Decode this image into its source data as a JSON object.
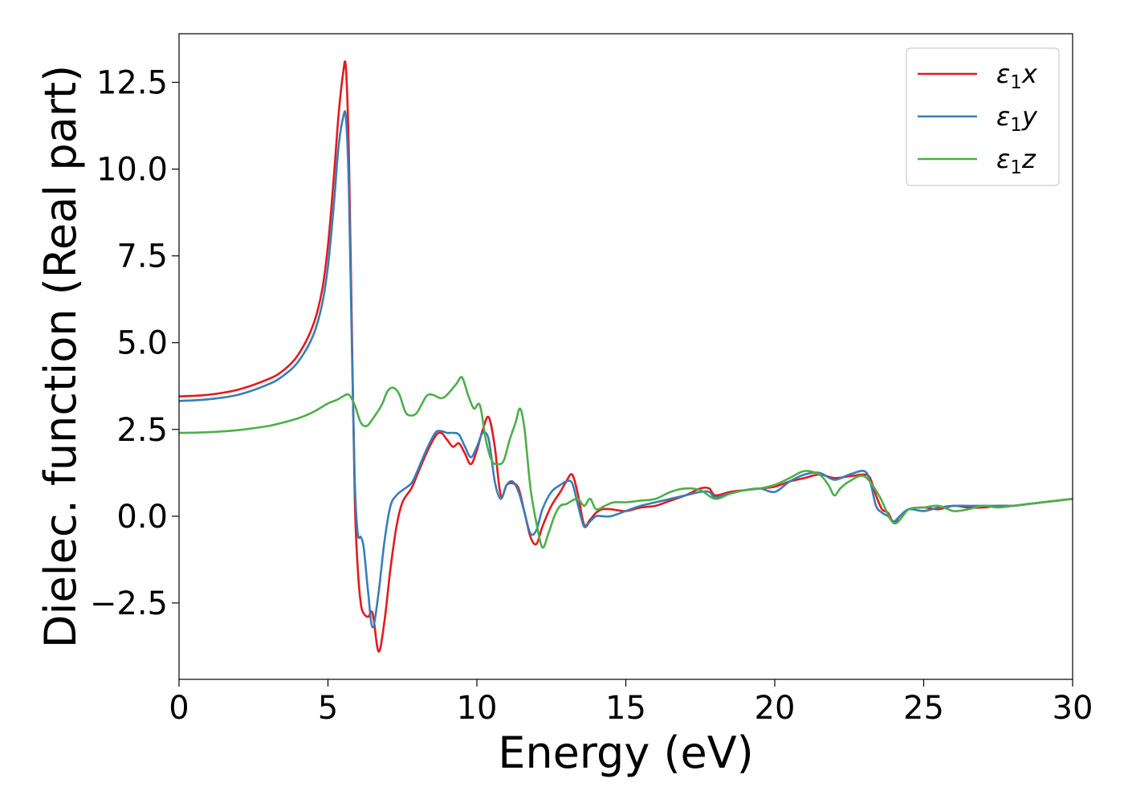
{
  "chart_data": {
    "type": "line",
    "title": "",
    "xlabel": "Energy (eV)",
    "ylabel": "Dielec. function (Real part)",
    "xlim": [
      0,
      30
    ],
    "ylim": [
      -4.7,
      13.9
    ],
    "xticks": [
      0,
      5,
      10,
      15,
      20,
      25,
      30
    ],
    "xtick_labels": [
      "0",
      "5",
      "10",
      "15",
      "20",
      "25",
      "30"
    ],
    "yticks": [
      -2.5,
      0.0,
      2.5,
      5.0,
      7.5,
      10.0,
      12.5
    ],
    "ytick_labels": [
      "−2.5",
      "0.0",
      "2.5",
      "5.0",
      "7.5",
      "10.0",
      "12.5"
    ],
    "grid": false,
    "legend_position": "top-right",
    "series": [
      {
        "name": "ε",
        "sub": "1",
        "suffix": "x",
        "color": "#e41a1c",
        "x": [
          0,
          1,
          2,
          3,
          3.5,
          4,
          4.5,
          4.8,
          5.0,
          5.2,
          5.35,
          5.5,
          5.6,
          5.7,
          5.8,
          5.9,
          6.0,
          6.1,
          6.2,
          6.35,
          6.5,
          6.7,
          6.9,
          7.1,
          7.3,
          7.5,
          7.8,
          8.0,
          8.3,
          8.6,
          8.8,
          9.0,
          9.2,
          9.4,
          9.6,
          9.8,
          10.0,
          10.2,
          10.4,
          10.6,
          10.8,
          11.0,
          11.2,
          11.4,
          11.6,
          11.8,
          12.0,
          12.2,
          12.5,
          12.8,
          13.0,
          13.2,
          13.4,
          13.6,
          13.8,
          14.0,
          14.2,
          14.5,
          15.0,
          15.5,
          16.0,
          16.5,
          17.0,
          17.5,
          17.8,
          18.0,
          18.5,
          19.0,
          19.5,
          20.0,
          20.5,
          21.0,
          21.5,
          22.0,
          22.5,
          23.0,
          23.2,
          23.4,
          23.6,
          23.8,
          24.0,
          24.2,
          24.5,
          25.0,
          25.5,
          26.0,
          26.5,
          27.0,
          27.5,
          28.0,
          28.5,
          29.0,
          29.5,
          30.0
        ],
        "y": [
          3.45,
          3.5,
          3.65,
          3.95,
          4.2,
          4.65,
          5.5,
          6.5,
          7.8,
          9.8,
          11.5,
          12.7,
          12.95,
          10.5,
          5.5,
          0.5,
          -1.5,
          -2.5,
          -2.8,
          -2.9,
          -2.8,
          -3.9,
          -3.0,
          -1.5,
          -0.3,
          0.4,
          0.8,
          1.2,
          1.8,
          2.3,
          2.4,
          2.2,
          2.0,
          2.1,
          1.8,
          1.5,
          1.9,
          2.5,
          2.85,
          2.0,
          0.6,
          0.9,
          0.95,
          0.8,
          0.1,
          -0.6,
          -0.8,
          -0.3,
          0.3,
          0.7,
          1.0,
          1.2,
          0.6,
          -0.25,
          -0.1,
          0.1,
          0.2,
          0.2,
          0.15,
          0.25,
          0.3,
          0.45,
          0.6,
          0.8,
          0.8,
          0.6,
          0.7,
          0.75,
          0.8,
          0.85,
          1.0,
          1.1,
          1.2,
          1.1,
          1.15,
          1.2,
          1.1,
          0.6,
          0.2,
          0.1,
          -0.2,
          0.0,
          0.2,
          0.25,
          0.2,
          0.3,
          0.25,
          0.25,
          0.3,
          0.3,
          0.35,
          0.4,
          0.45,
          0.5
        ]
      },
      {
        "name": "ε",
        "sub": "1",
        "suffix": "y",
        "color": "#377eb8",
        "x": [
          0,
          1,
          2,
          3,
          3.5,
          4,
          4.5,
          4.8,
          5.0,
          5.2,
          5.35,
          5.5,
          5.6,
          5.7,
          5.8,
          5.9,
          6.0,
          6.1,
          6.2,
          6.35,
          6.5,
          6.7,
          6.9,
          7.1,
          7.3,
          7.5,
          7.8,
          8.0,
          8.3,
          8.6,
          8.8,
          9.0,
          9.2,
          9.4,
          9.6,
          9.8,
          10.0,
          10.2,
          10.4,
          10.6,
          10.8,
          11.0,
          11.2,
          11.4,
          11.6,
          11.8,
          12.0,
          12.2,
          12.5,
          12.8,
          13.0,
          13.2,
          13.4,
          13.6,
          13.8,
          14.0,
          14.2,
          14.5,
          15.0,
          15.5,
          16.0,
          16.5,
          17.0,
          17.5,
          17.8,
          18.0,
          18.5,
          19.0,
          19.5,
          20.0,
          20.5,
          21.0,
          21.5,
          22.0,
          22.5,
          23.0,
          23.2,
          23.4,
          23.6,
          23.8,
          24.0,
          24.2,
          24.5,
          25.0,
          25.5,
          26.0,
          26.5,
          27.0,
          27.5,
          28.0,
          28.5,
          29.0,
          29.5,
          30.0
        ],
        "y": [
          3.32,
          3.37,
          3.5,
          3.8,
          4.05,
          4.45,
          5.2,
          6.1,
          7.2,
          9.0,
          10.6,
          11.45,
          11.5,
          9.5,
          5.0,
          1.0,
          -0.5,
          -0.6,
          -0.9,
          -2.2,
          -3.2,
          -2.2,
          -0.7,
          0.3,
          0.6,
          0.75,
          0.95,
          1.3,
          1.9,
          2.4,
          2.45,
          2.4,
          2.4,
          2.35,
          2.0,
          1.7,
          2.0,
          2.4,
          2.2,
          1.0,
          0.5,
          0.9,
          1.0,
          0.7,
          0.1,
          -0.5,
          -0.4,
          0.2,
          0.7,
          0.9,
          1.0,
          0.95,
          0.3,
          -0.3,
          -0.15,
          0.0,
          0.0,
          0.0,
          0.15,
          0.3,
          0.4,
          0.5,
          0.6,
          0.7,
          0.7,
          0.55,
          0.65,
          0.75,
          0.8,
          0.7,
          1.0,
          1.2,
          1.25,
          1.05,
          1.2,
          1.3,
          1.0,
          0.3,
          0.1,
          0.0,
          -0.15,
          0.0,
          0.2,
          0.15,
          0.25,
          0.3,
          0.3,
          0.3,
          0.3,
          0.3,
          0.35,
          0.4,
          0.45,
          0.5
        ]
      },
      {
        "name": "ε",
        "sub": "1",
        "suffix": "z",
        "color": "#4daf4a",
        "x": [
          0,
          1,
          2,
          3,
          3.5,
          4,
          4.5,
          5.0,
          5.3,
          5.5,
          5.7,
          5.9,
          6.1,
          6.3,
          6.5,
          6.8,
          7.0,
          7.2,
          7.4,
          7.6,
          7.8,
          8.0,
          8.3,
          8.5,
          8.8,
          9.0,
          9.3,
          9.5,
          9.7,
          9.9,
          10.1,
          10.3,
          10.5,
          10.7,
          10.9,
          11.1,
          11.3,
          11.45,
          11.6,
          11.8,
          12.0,
          12.2,
          12.4,
          12.6,
          12.8,
          13.0,
          13.2,
          13.4,
          13.6,
          13.8,
          14.0,
          14.3,
          14.6,
          15.0,
          15.5,
          16.0,
          16.5,
          17.0,
          17.5,
          18.0,
          18.5,
          19.0,
          19.5,
          20.0,
          20.5,
          21.0,
          21.5,
          21.8,
          22.0,
          22.2,
          22.5,
          23.0,
          23.5,
          24.0,
          24.5,
          25.0,
          25.5,
          26.0,
          26.5,
          27.0,
          27.5,
          28.0,
          28.5,
          29.0,
          29.5,
          30.0
        ],
        "y": [
          2.4,
          2.42,
          2.48,
          2.6,
          2.7,
          2.82,
          3.0,
          3.25,
          3.35,
          3.45,
          3.5,
          3.2,
          2.7,
          2.6,
          2.8,
          3.2,
          3.6,
          3.7,
          3.5,
          3.0,
          2.9,
          3.0,
          3.45,
          3.5,
          3.4,
          3.5,
          3.8,
          4.0,
          3.5,
          3.1,
          3.2,
          2.2,
          1.6,
          1.5,
          1.6,
          2.2,
          2.7,
          3.1,
          2.5,
          0.8,
          -0.2,
          -0.9,
          -0.5,
          0.0,
          0.3,
          0.35,
          0.45,
          0.5,
          0.3,
          0.5,
          0.2,
          0.3,
          0.4,
          0.4,
          0.45,
          0.5,
          0.7,
          0.8,
          0.75,
          0.5,
          0.65,
          0.75,
          0.8,
          0.9,
          1.1,
          1.3,
          1.2,
          0.9,
          0.6,
          0.8,
          1.0,
          1.15,
          0.6,
          -0.2,
          0.2,
          0.25,
          0.3,
          0.15,
          0.2,
          0.3,
          0.25,
          0.3,
          0.35,
          0.4,
          0.45,
          0.5
        ]
      }
    ]
  }
}
